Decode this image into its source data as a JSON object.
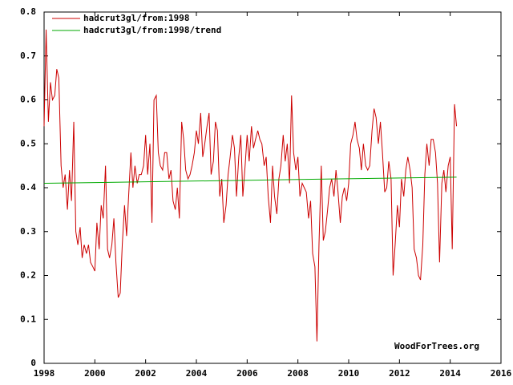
{
  "chart_data": {
    "type": "line",
    "watermark": "WoodForTrees.org",
    "xlim": [
      1998,
      2016
    ],
    "xticks": [
      1998,
      2000,
      2002,
      2004,
      2006,
      2008,
      2010,
      2012,
      2014,
      2016
    ],
    "ylim": [
      0,
      0.8
    ],
    "yticks": [
      0,
      0.1,
      0.2,
      0.3,
      0.4,
      0.5,
      0.6,
      0.7,
      0.8
    ],
    "legend": "upper left",
    "series": [
      {
        "name": "hadcrut3gl/from:1998",
        "color": "#cc0000",
        "x": [
          1998,
          1998.08,
          1998.17,
          1998.25,
          1998.33,
          1998.42,
          1998.5,
          1998.58,
          1998.67,
          1998.75,
          1998.83,
          1998.92,
          1999,
          1999.08,
          1999.17,
          1999.25,
          1999.33,
          1999.42,
          1999.5,
          1999.58,
          1999.67,
          1999.75,
          1999.83,
          1999.92,
          2000,
          2000.08,
          2000.17,
          2000.25,
          2000.33,
          2000.42,
          2000.5,
          2000.58,
          2000.67,
          2000.75,
          2000.83,
          2000.92,
          2001,
          2001.08,
          2001.17,
          2001.25,
          2001.33,
          2001.42,
          2001.5,
          2001.58,
          2001.67,
          2001.75,
          2001.83,
          2001.92,
          2002,
          2002.08,
          2002.17,
          2002.25,
          2002.33,
          2002.42,
          2002.5,
          2002.58,
          2002.67,
          2002.75,
          2002.83,
          2002.92,
          2003,
          2003.08,
          2003.17,
          2003.25,
          2003.33,
          2003.42,
          2003.5,
          2003.58,
          2003.67,
          2003.75,
          2003.83,
          2003.92,
          2004,
          2004.08,
          2004.17,
          2004.25,
          2004.33,
          2004.42,
          2004.5,
          2004.58,
          2004.67,
          2004.75,
          2004.83,
          2004.92,
          2005,
          2005.08,
          2005.17,
          2005.25,
          2005.33,
          2005.42,
          2005.5,
          2005.58,
          2005.67,
          2005.75,
          2005.83,
          2005.92,
          2006,
          2006.08,
          2006.17,
          2006.25,
          2006.33,
          2006.42,
          2006.5,
          2006.58,
          2006.67,
          2006.75,
          2006.83,
          2006.92,
          2007,
          2007.08,
          2007.17,
          2007.25,
          2007.33,
          2007.42,
          2007.5,
          2007.58,
          2007.67,
          2007.75,
          2007.83,
          2007.92,
          2008,
          2008.08,
          2008.17,
          2008.25,
          2008.33,
          2008.42,
          2008.5,
          2008.58,
          2008.67,
          2008.75,
          2008.83,
          2008.92,
          2009,
          2009.08,
          2009.17,
          2009.25,
          2009.33,
          2009.42,
          2009.5,
          2009.58,
          2009.67,
          2009.75,
          2009.83,
          2009.92,
          2010,
          2010.08,
          2010.17,
          2010.25,
          2010.33,
          2010.42,
          2010.5,
          2010.58,
          2010.67,
          2010.75,
          2010.83,
          2010.92,
          2011,
          2011.08,
          2011.17,
          2011.25,
          2011.33,
          2011.42,
          2011.5,
          2011.58,
          2011.67,
          2011.75,
          2011.83,
          2011.92,
          2012,
          2012.08,
          2012.17,
          2012.25,
          2012.33,
          2012.42,
          2012.5,
          2012.58,
          2012.67,
          2012.75,
          2012.83,
          2012.92,
          2013,
          2013.08,
          2013.17,
          2013.25,
          2013.33,
          2013.42,
          2013.5,
          2013.58,
          2013.67,
          2013.75,
          2013.83,
          2013.92,
          2014,
          2014.08,
          2014.17,
          2014.25
        ],
        "values": [
          0.54,
          0.76,
          0.55,
          0.64,
          0.6,
          0.61,
          0.67,
          0.65,
          0.45,
          0.4,
          0.43,
          0.35,
          0.44,
          0.37,
          0.55,
          0.3,
          0.27,
          0.31,
          0.24,
          0.27,
          0.25,
          0.27,
          0.23,
          0.22,
          0.21,
          0.32,
          0.26,
          0.36,
          0.33,
          0.45,
          0.26,
          0.24,
          0.27,
          0.33,
          0.23,
          0.15,
          0.16,
          0.27,
          0.36,
          0.29,
          0.38,
          0.48,
          0.4,
          0.45,
          0.41,
          0.43,
          0.43,
          0.45,
          0.52,
          0.43,
          0.5,
          0.32,
          0.6,
          0.61,
          0.48,
          0.45,
          0.44,
          0.48,
          0.48,
          0.42,
          0.44,
          0.37,
          0.35,
          0.4,
          0.33,
          0.55,
          0.51,
          0.44,
          0.42,
          0.43,
          0.45,
          0.48,
          0.53,
          0.5,
          0.57,
          0.47,
          0.5,
          0.54,
          0.57,
          0.43,
          0.46,
          0.55,
          0.53,
          0.38,
          0.42,
          0.32,
          0.36,
          0.43,
          0.47,
          0.52,
          0.49,
          0.38,
          0.47,
          0.52,
          0.38,
          0.45,
          0.52,
          0.46,
          0.54,
          0.49,
          0.51,
          0.53,
          0.51,
          0.5,
          0.45,
          0.47,
          0.38,
          0.32,
          0.45,
          0.38,
          0.34,
          0.42,
          0.45,
          0.52,
          0.46,
          0.5,
          0.41,
          0.61,
          0.48,
          0.44,
          0.47,
          0.38,
          0.41,
          0.4,
          0.39,
          0.33,
          0.37,
          0.25,
          0.22,
          0.05,
          0.27,
          0.45,
          0.28,
          0.3,
          0.35,
          0.4,
          0.42,
          0.38,
          0.44,
          0.39,
          0.32,
          0.38,
          0.4,
          0.37,
          0.41,
          0.5,
          0.52,
          0.55,
          0.51,
          0.49,
          0.44,
          0.5,
          0.45,
          0.44,
          0.45,
          0.53,
          0.58,
          0.56,
          0.5,
          0.55,
          0.48,
          0.39,
          0.4,
          0.46,
          0.42,
          0.2,
          0.27,
          0.36,
          0.31,
          0.42,
          0.38,
          0.44,
          0.47,
          0.44,
          0.4,
          0.26,
          0.24,
          0.2,
          0.19,
          0.27,
          0.43,
          0.5,
          0.45,
          0.51,
          0.51,
          0.48,
          0.41,
          0.23,
          0.41,
          0.44,
          0.39,
          0.45,
          0.47,
          0.26,
          0.59,
          0.54
        ]
      },
      {
        "name": "hadcrut3gl/from:1998/trend",
        "color": "#00aa00",
        "x": [
          1998,
          2014.25
        ],
        "values": [
          0.41,
          0.424
        ]
      }
    ]
  }
}
